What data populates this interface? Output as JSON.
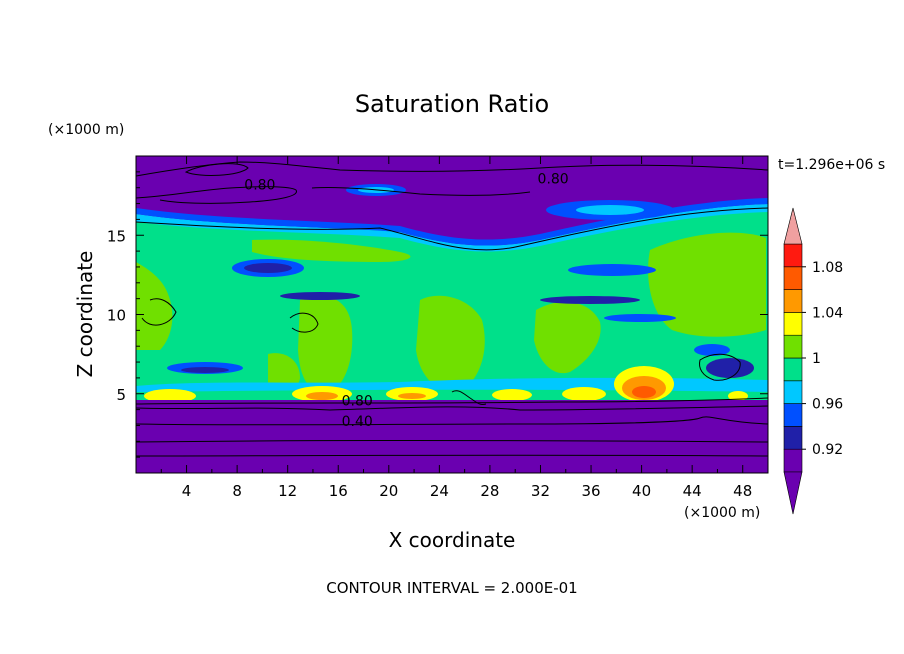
{
  "chart_data": {
    "type": "heatmap",
    "title": "Saturation Ratio",
    "time_label": "t=1.296e+06 s",
    "xlabel": "X coordinate",
    "ylabel": "Z coordinate",
    "x_unit": "(×1000 m)",
    "y_unit": "(×1000 m)",
    "x_ticks": [
      "4",
      "8",
      "12",
      "16",
      "20",
      "24",
      "28",
      "32",
      "36",
      "40",
      "44",
      "48"
    ],
    "x_tick_values": [
      4,
      8,
      12,
      16,
      20,
      24,
      28,
      32,
      36,
      40,
      44,
      48
    ],
    "y_ticks": [
      "5",
      "10",
      "15"
    ],
    "y_tick_values": [
      5,
      10,
      15
    ],
    "xlim": [
      0,
      50
    ],
    "ylim": [
      0,
      20
    ],
    "contour_labels": [
      "0.80",
      "0.80",
      "0.80",
      "0.40"
    ],
    "footer": "CONTOUR INTERVAL = 2.000E-01",
    "colorbar": {
      "labels": [
        "1.08",
        "1.04",
        "1",
        "0.96",
        "0.92"
      ],
      "label_values": [
        1.08,
        1.04,
        1.0,
        0.96,
        0.92
      ],
      "levels": [
        0.9,
        0.92,
        0.94,
        0.96,
        0.98,
        1.0,
        1.02,
        1.04,
        1.06,
        1.08,
        1.1
      ],
      "colors": [
        "#6a00b0",
        "#2020a8",
        "#0050ff",
        "#00c8ff",
        "#00e08a",
        "#70e000",
        "#ffff00",
        "#ff9900",
        "#ff5a00",
        "#ff1a10"
      ],
      "under_color": "#6a00b0",
      "over_color": "#f0a0a0"
    }
  }
}
